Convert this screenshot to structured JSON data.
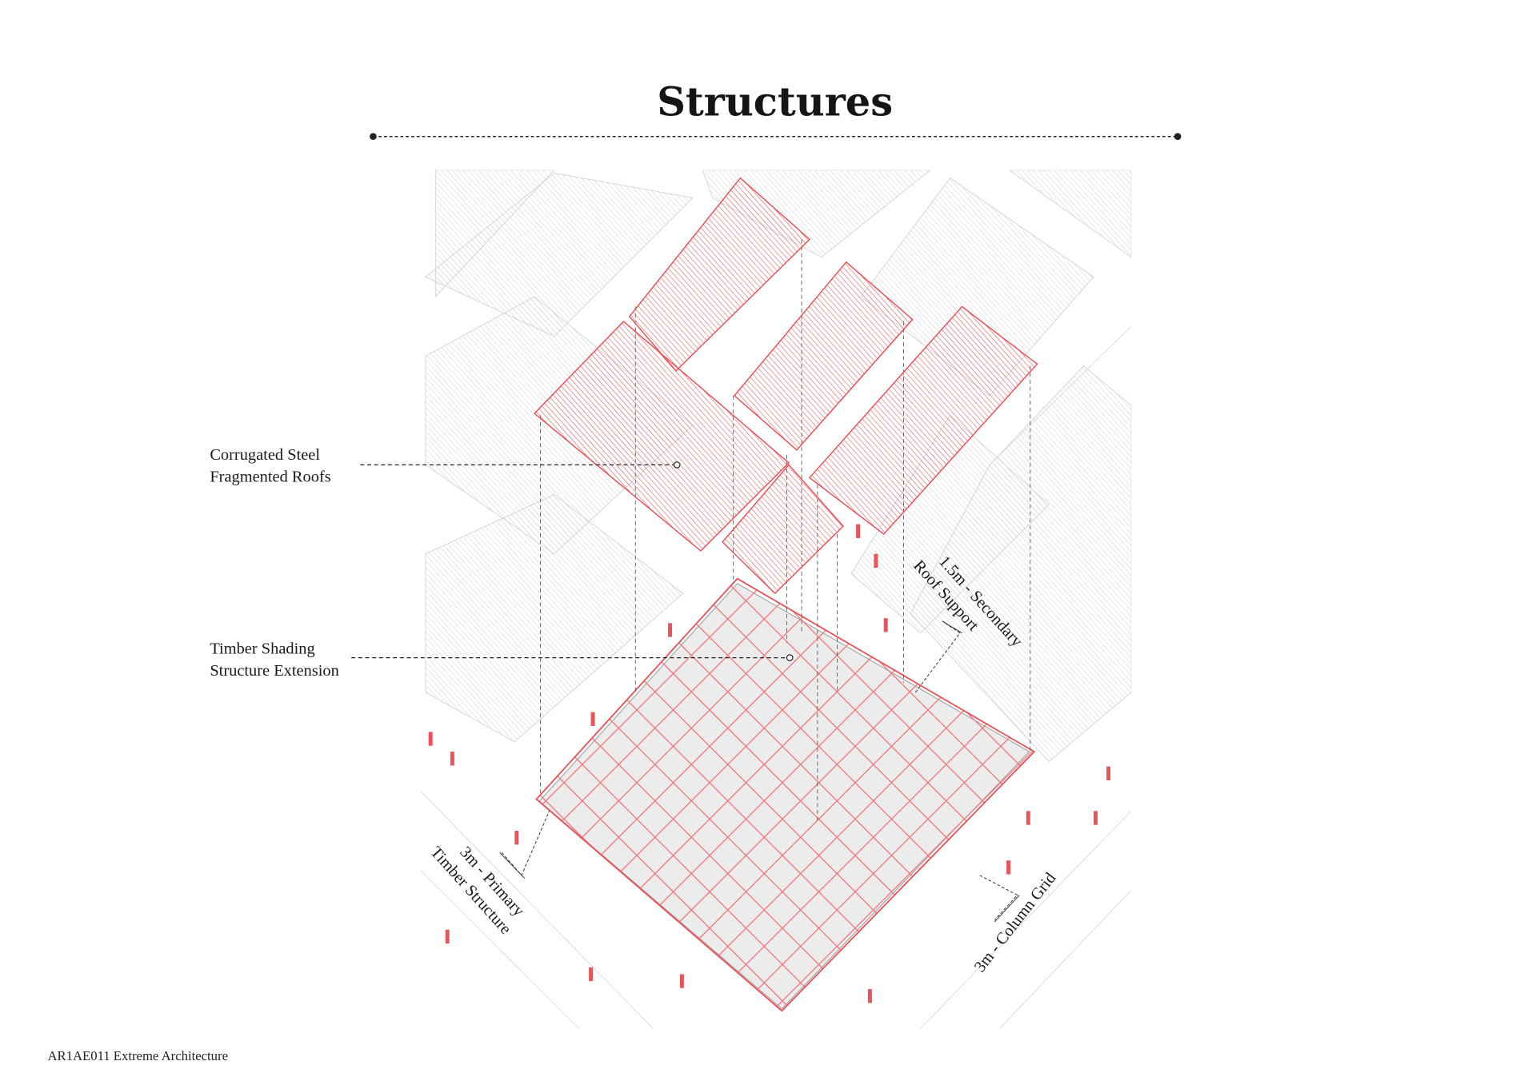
{
  "title": "Structures",
  "labels": {
    "roofs_line1": "Corrugated Steel",
    "roofs_line2": "Fragmented Roofs",
    "timber_line1": "Timber Shading",
    "timber_line2": "Structure Extension",
    "secondary_line1": "1.5m - Secondary",
    "secondary_line2": "Roof Support",
    "primary_line1": "3m - Primary",
    "primary_line2": "Timber Structure",
    "column_grid": "3m - Column Grid"
  },
  "footer": "AR1AE011 Extreme Architecture",
  "colors": {
    "accent": "#e8545a",
    "grey": "#c8c8c8",
    "text": "#1a1a1a"
  }
}
